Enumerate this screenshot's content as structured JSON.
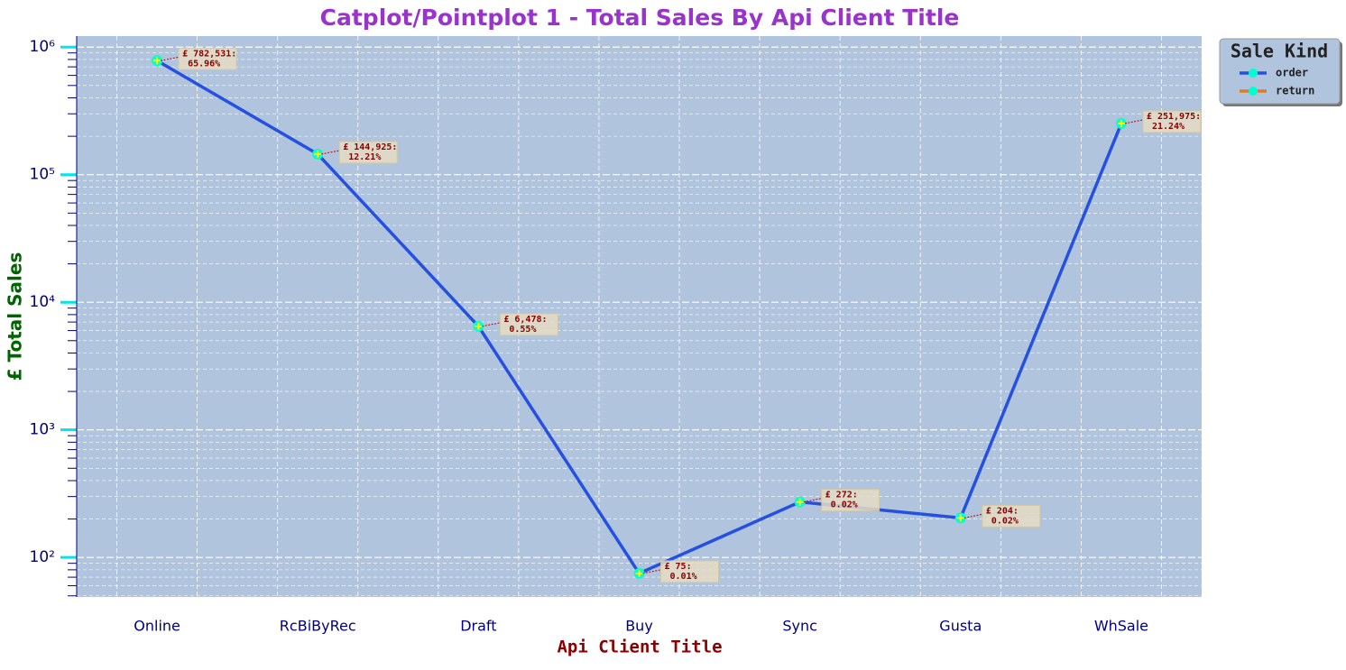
{
  "chart_data": {
    "type": "line",
    "title": "Catplot/Pointplot 1 - Total Sales By Api Client Title",
    "x_label": "Api Client Title",
    "y_label": "£ Total Sales",
    "categories": [
      "Online",
      "RcBiByRec",
      "Draft",
      "Buy",
      "Sync",
      "Gusta",
      "WhSale"
    ],
    "series": [
      {
        "name": "order",
        "color": "#2650e0",
        "values": [
          782531,
          144925,
          6478,
          75,
          272,
          204,
          251975
        ],
        "value_labels": [
          "£ 782,531:\n 65.96%",
          "£ 144,925:\n 12.21%",
          "£ 6,478:\n 0.55%",
          "£ 75:\n 0.01%",
          "£ 272:\n 0.02%",
          "£ 204:\n 0.02%",
          "£ 251,975:\n 21.24%"
        ]
      },
      {
        "name": "return",
        "color": "#e07b2b",
        "values": [
          null,
          null,
          null,
          null,
          null,
          null,
          null
        ]
      }
    ],
    "legend_title": "Sale Kind",
    "legend": "upper right outside",
    "log_y": true,
    "ylim": [
      49,
      1220000
    ],
    "yticks": [
      {
        "value": 100,
        "label": "10²"
      },
      {
        "value": 1000,
        "label": "10³"
      },
      {
        "value": 10000,
        "label": "10⁴"
      },
      {
        "value": 100000,
        "label": "10⁵"
      },
      {
        "value": 1000000,
        "label": "10⁶"
      }
    ],
    "grid": true
  }
}
